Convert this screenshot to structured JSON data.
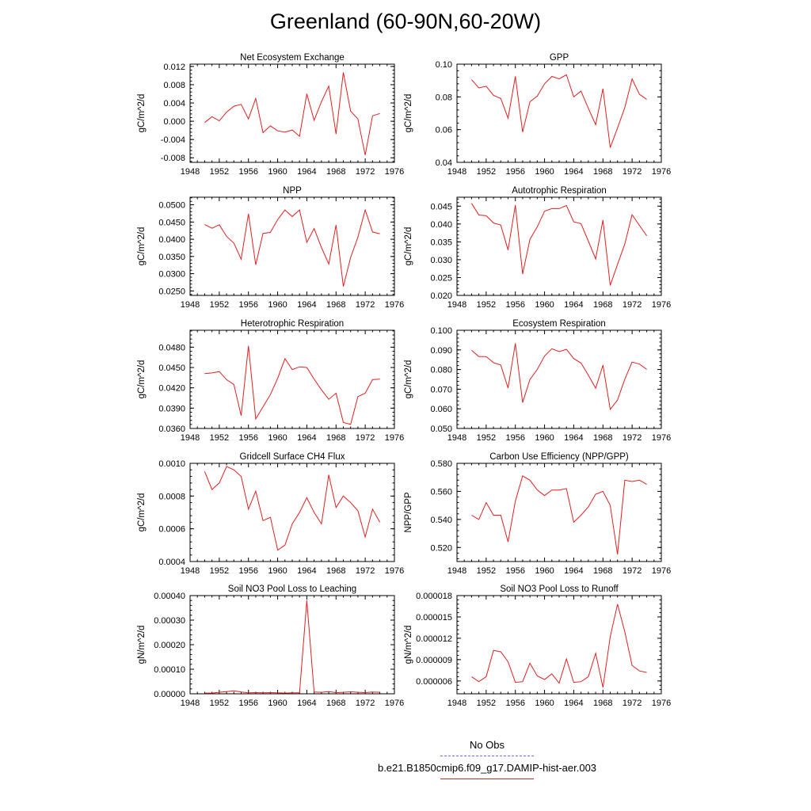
{
  "title": "Greenland (60-90N,60-20W)",
  "legend": {
    "obs_label": "No Obs",
    "obs_color": "#6a6ae0",
    "model_label": "b.e21.B1850cmip6.f09_g17.DAMIP-hist-aer.003",
    "model_color": "#e02020"
  },
  "chart_data": [
    {
      "type": "line",
      "title": "Net Ecosystem Exchange",
      "ylabel": "gC/m^2/d",
      "xlim": [
        1948,
        1976
      ],
      "xticks": [
        "1948",
        "1952",
        "1956",
        "1960",
        "1964",
        "1968",
        "1972",
        "1976"
      ],
      "ylim": [
        -0.009,
        0.0125
      ],
      "yticks": [
        "-0.008",
        "-0.004",
        "0.000",
        "0.004",
        "0.008",
        "0.012"
      ],
      "ytick_values": [
        -0.008,
        -0.004,
        0.0,
        0.004,
        0.008,
        0.012
      ],
      "x": [
        1950,
        1951,
        1952,
        1953,
        1954,
        1955,
        1956,
        1957,
        1958,
        1959,
        1960,
        1961,
        1962,
        1963,
        1964,
        1965,
        1966,
        1967,
        1968,
        1969,
        1970,
        1971,
        1972,
        1973,
        1974
      ],
      "series": [
        {
          "values": [
            -0.0003,
            0.001,
            0.0001,
            0.002,
            0.0033,
            0.0037,
            0.0005,
            0.005,
            -0.0025,
            -0.001,
            -0.0021,
            -0.0024,
            -0.0019,
            -0.0033,
            0.006,
            0.0002,
            0.0043,
            0.0077,
            -0.0028,
            0.0107,
            0.0022,
            0.0005,
            -0.0074,
            0.0012,
            0.0017
          ]
        }
      ]
    },
    {
      "type": "line",
      "title": "GPP",
      "ylabel": "gC/m^2/d",
      "xlim": [
        1948,
        1976
      ],
      "xticks": [
        "1948",
        "1952",
        "1956",
        "1960",
        "1964",
        "1968",
        "1972",
        "1976"
      ],
      "ylim": [
        0.04,
        0.1
      ],
      "yticks": [
        "0.04",
        "0.06",
        "0.08",
        "0.10"
      ],
      "ytick_values": [
        0.04,
        0.06,
        0.08,
        0.1
      ],
      "x": [
        1950,
        1951,
        1952,
        1953,
        1954,
        1955,
        1956,
        1957,
        1958,
        1959,
        1960,
        1961,
        1962,
        1963,
        1964,
        1965,
        1966,
        1967,
        1968,
        1969,
        1970,
        1971,
        1972,
        1973,
        1974
      ],
      "series": [
        {
          "values": [
            0.0905,
            0.0855,
            0.0865,
            0.081,
            0.079,
            0.067,
            0.0925,
            0.0585,
            0.077,
            0.0805,
            0.088,
            0.0925,
            0.091,
            0.0935,
            0.08,
            0.0835,
            0.073,
            0.063,
            0.085,
            0.049,
            0.061,
            0.0735,
            0.091,
            0.0815,
            0.0785
          ]
        }
      ]
    },
    {
      "type": "line",
      "title": "NPP",
      "ylabel": "gC/m^2/d",
      "xlim": [
        1948,
        1976
      ],
      "xticks": [
        "1948",
        "1952",
        "1956",
        "1960",
        "1964",
        "1968",
        "1972",
        "1976"
      ],
      "ylim": [
        0.0237,
        0.0522
      ],
      "yticks": [
        "0.0250",
        "0.0300",
        "0.0350",
        "0.0400",
        "0.0450",
        "0.0500"
      ],
      "ytick_values": [
        0.025,
        0.03,
        0.035,
        0.04,
        0.045,
        0.05
      ],
      "x": [
        1950,
        1951,
        1952,
        1953,
        1954,
        1955,
        1956,
        1957,
        1958,
        1959,
        1960,
        1961,
        1962,
        1963,
        1964,
        1965,
        1966,
        1967,
        1968,
        1969,
        1970,
        1971,
        1972,
        1973,
        1974
      ],
      "series": [
        {
          "values": [
            0.0443,
            0.0432,
            0.0442,
            0.0408,
            0.0389,
            0.0342,
            0.0474,
            0.0326,
            0.0417,
            0.042,
            0.0457,
            0.0485,
            0.0466,
            0.0485,
            0.0391,
            0.0431,
            0.0376,
            0.0328,
            0.0441,
            0.0263,
            0.0347,
            0.0406,
            0.0485,
            0.0421,
            0.0416
          ]
        }
      ]
    },
    {
      "type": "line",
      "title": "Autotrophic Respiration",
      "ylabel": "gC/m^2/d",
      "xlim": [
        1948,
        1976
      ],
      "xticks": [
        "1948",
        "1952",
        "1956",
        "1960",
        "1964",
        "1968",
        "1972",
        "1976"
      ],
      "ylim": [
        0.02,
        0.0475
      ],
      "yticks": [
        "0.020",
        "0.025",
        "0.030",
        "0.035",
        "0.040",
        "0.045"
      ],
      "ytick_values": [
        0.02,
        0.025,
        0.03,
        0.035,
        0.04,
        0.045
      ],
      "x": [
        1950,
        1951,
        1952,
        1953,
        1954,
        1955,
        1956,
        1957,
        1958,
        1959,
        1960,
        1961,
        1962,
        1963,
        1964,
        1965,
        1966,
        1967,
        1968,
        1969,
        1970,
        1971,
        1972,
        1973,
        1974
      ],
      "series": [
        {
          "values": [
            0.0458,
            0.0425,
            0.0423,
            0.0403,
            0.0397,
            0.0327,
            0.0453,
            0.026,
            0.0357,
            0.0392,
            0.0436,
            0.0443,
            0.0443,
            0.0452,
            0.0406,
            0.0401,
            0.0352,
            0.0302,
            0.0411,
            0.0228,
            0.0287,
            0.0344,
            0.0426,
            0.0396,
            0.0367
          ]
        }
      ]
    },
    {
      "type": "line",
      "title": "Heterotrophic Respiration",
      "ylabel": "gC/m^2/d",
      "xlim": [
        1948,
        1976
      ],
      "xticks": [
        "1948",
        "1952",
        "1956",
        "1960",
        "1964",
        "1968",
        "1972",
        "1976"
      ],
      "ylim": [
        0.036,
        0.0505
      ],
      "yticks": [
        "0.0360",
        "0.0390",
        "0.0420",
        "0.0450",
        "0.0480"
      ],
      "ytick_values": [
        0.036,
        0.039,
        0.042,
        0.045,
        0.048
      ],
      "x": [
        1950,
        1951,
        1952,
        1953,
        1954,
        1955,
        1956,
        1957,
        1958,
        1959,
        1960,
        1961,
        1962,
        1963,
        1964,
        1965,
        1966,
        1967,
        1968,
        1969,
        1970,
        1971,
        1972,
        1973,
        1974
      ],
      "series": [
        {
          "values": [
            0.0441,
            0.0442,
            0.0444,
            0.0432,
            0.0425,
            0.0379,
            0.0482,
            0.0374,
            0.0392,
            0.041,
            0.0434,
            0.0463,
            0.0447,
            0.0451,
            0.045,
            0.0433,
            0.0417,
            0.0403,
            0.0412,
            0.0369,
            0.0366,
            0.0407,
            0.0412,
            0.0432,
            0.0433
          ]
        }
      ]
    },
    {
      "type": "line",
      "title": "Ecosystem Respiration",
      "ylabel": "gC/m^2/d",
      "xlim": [
        1948,
        1976
      ],
      "xticks": [
        "1948",
        "1952",
        "1956",
        "1960",
        "1964",
        "1968",
        "1972",
        "1976"
      ],
      "ylim": [
        0.05,
        0.1
      ],
      "yticks": [
        "0.050",
        "0.060",
        "0.070",
        "0.080",
        "0.090",
        "0.100"
      ],
      "ytick_values": [
        0.05,
        0.06,
        0.07,
        0.08,
        0.09,
        0.1
      ],
      "x": [
        1950,
        1951,
        1952,
        1953,
        1954,
        1955,
        1956,
        1957,
        1958,
        1959,
        1960,
        1961,
        1962,
        1963,
        1964,
        1965,
        1966,
        1967,
        1968,
        1969,
        1970,
        1971,
        1972,
        1973,
        1974
      ],
      "series": [
        {
          "values": [
            0.0898,
            0.0866,
            0.0866,
            0.0835,
            0.0823,
            0.0706,
            0.0934,
            0.0632,
            0.0749,
            0.0801,
            0.0869,
            0.0906,
            0.0891,
            0.0903,
            0.0856,
            0.0833,
            0.0771,
            0.0705,
            0.0822,
            0.0597,
            0.0645,
            0.0751,
            0.0838,
            0.0828,
            0.0801
          ]
        }
      ]
    },
    {
      "type": "line",
      "title": "Gridcell Surface CH4 Flux",
      "ylabel": "gC/m^2/d",
      "xlim": [
        1948,
        1976
      ],
      "xticks": [
        "1948",
        "1952",
        "1956",
        "1960",
        "1964",
        "1968",
        "1972",
        "1976"
      ],
      "ylim": [
        0.0004,
        0.001
      ],
      "yticks": [
        "0.0004",
        "0.0006",
        "0.0008",
        "0.0010"
      ],
      "ytick_values": [
        0.0004,
        0.0006,
        0.0008,
        0.001
      ],
      "x": [
        1950,
        1951,
        1952,
        1953,
        1954,
        1955,
        1956,
        1957,
        1958,
        1959,
        1960,
        1961,
        1962,
        1963,
        1964,
        1965,
        1966,
        1967,
        1968,
        1969,
        1970,
        1971,
        1972,
        1973,
        1974
      ],
      "series": [
        {
          "values": [
            0.00095,
            0.00084,
            0.00088,
            0.00098,
            0.00096,
            0.00092,
            0.00072,
            0.00083,
            0.00065,
            0.00067,
            0.00047,
            0.0005,
            0.00063,
            0.0007,
            0.00079,
            0.0007,
            0.00063,
            0.00093,
            0.00073,
            0.0008,
            0.00076,
            0.00071,
            0.00055,
            0.00072,
            0.00064
          ]
        }
      ]
    },
    {
      "type": "line",
      "title": "Carbon Use Efficiency (NPP/GPP)",
      "ylabel": "NPP/GPP",
      "xlim": [
        1948,
        1976
      ],
      "xticks": [
        "1948",
        "1952",
        "1956",
        "1960",
        "1964",
        "1968",
        "1972",
        "1976"
      ],
      "ylim": [
        0.51,
        0.58
      ],
      "yticks": [
        "0.520",
        "0.540",
        "0.560",
        "0.580"
      ],
      "ytick_values": [
        0.52,
        0.54,
        0.56,
        0.58
      ],
      "x": [
        1950,
        1951,
        1952,
        1953,
        1954,
        1955,
        1956,
        1957,
        1958,
        1959,
        1960,
        1961,
        1962,
        1963,
        1964,
        1965,
        1966,
        1967,
        1968,
        1969,
        1970,
        1971,
        1972,
        1973,
        1974
      ],
      "series": [
        {
          "values": [
            0.543,
            0.54,
            0.552,
            0.543,
            0.543,
            0.524,
            0.553,
            0.571,
            0.568,
            0.561,
            0.557,
            0.561,
            0.561,
            0.562,
            0.538,
            0.543,
            0.549,
            0.558,
            0.56,
            0.55,
            0.515,
            0.568,
            0.567,
            0.568,
            0.565
          ]
        }
      ]
    },
    {
      "type": "line",
      "title": "Soil NO3 Pool Loss to Leaching",
      "ylabel": "gN/m^2/d",
      "xlim": [
        1948,
        1976
      ],
      "xticks": [
        "1948",
        "1952",
        "1956",
        "1960",
        "1964",
        "1968",
        "1972",
        "1976"
      ],
      "ylim": [
        0.0,
        0.0004
      ],
      "yticks": [
        "0.00000",
        "0.00010",
        "0.00020",
        "0.00030",
        "0.00040"
      ],
      "ytick_values": [
        0.0,
        0.0001,
        0.0002,
        0.0003,
        0.0004
      ],
      "x": [
        1950,
        1951,
        1952,
        1953,
        1954,
        1955,
        1956,
        1957,
        1958,
        1959,
        1960,
        1961,
        1962,
        1963,
        1964,
        1965,
        1966,
        1967,
        1968,
        1969,
        1970,
        1971,
        1972,
        1973,
        1974
      ],
      "series": [
        {
          "values": [
            3e-06,
            3e-06,
            6e-06,
            9e-06,
            1.2e-05,
            7e-06,
            4e-06,
            5e-06,
            4e-06,
            5e-06,
            4e-06,
            3e-06,
            4e-06,
            4e-06,
            0.00038,
            7e-06,
            6e-06,
            9e-06,
            5e-06,
            6e-06,
            8e-06,
            6e-06,
            5e-06,
            7e-06,
            6e-06
          ]
        }
      ]
    },
    {
      "type": "line",
      "title": "Soil NO3 Pool Loss to Runoff",
      "ylabel": "gN/m^2/d",
      "xlim": [
        1948,
        1976
      ],
      "xticks": [
        "1948",
        "1952",
        "1956",
        "1960",
        "1964",
        "1968",
        "1972",
        "1976"
      ],
      "ylim": [
        4.2e-06,
        1.8e-05
      ],
      "yticks": [
        "0.000006",
        "0.000009",
        "0.000012",
        "0.000015",
        "0.000018"
      ],
      "ytick_values": [
        6e-06,
        9e-06,
        1.2e-05,
        1.5e-05,
        1.8e-05
      ],
      "x": [
        1950,
        1951,
        1952,
        1953,
        1954,
        1955,
        1956,
        1957,
        1958,
        1959,
        1960,
        1961,
        1962,
        1963,
        1964,
        1965,
        1966,
        1967,
        1968,
        1969,
        1970,
        1971,
        1972,
        1973,
        1974
      ],
      "series": [
        {
          "values": [
            6.6e-06,
            5.9e-06,
            6.6e-06,
            1.03e-05,
            1.01e-05,
            8.7e-06,
            5.8e-06,
            5.9e-06,
            8.5e-06,
            6.7e-06,
            6.2e-06,
            7e-06,
            5.7e-06,
            9.1e-06,
            5.8e-06,
            5.9e-06,
            6.6e-06,
            9.9e-06,
            5.1e-06,
            1.22e-05,
            1.68e-05,
            1.29e-05,
            8.2e-06,
            7.4e-06,
            7.2e-06
          ]
        }
      ]
    }
  ]
}
